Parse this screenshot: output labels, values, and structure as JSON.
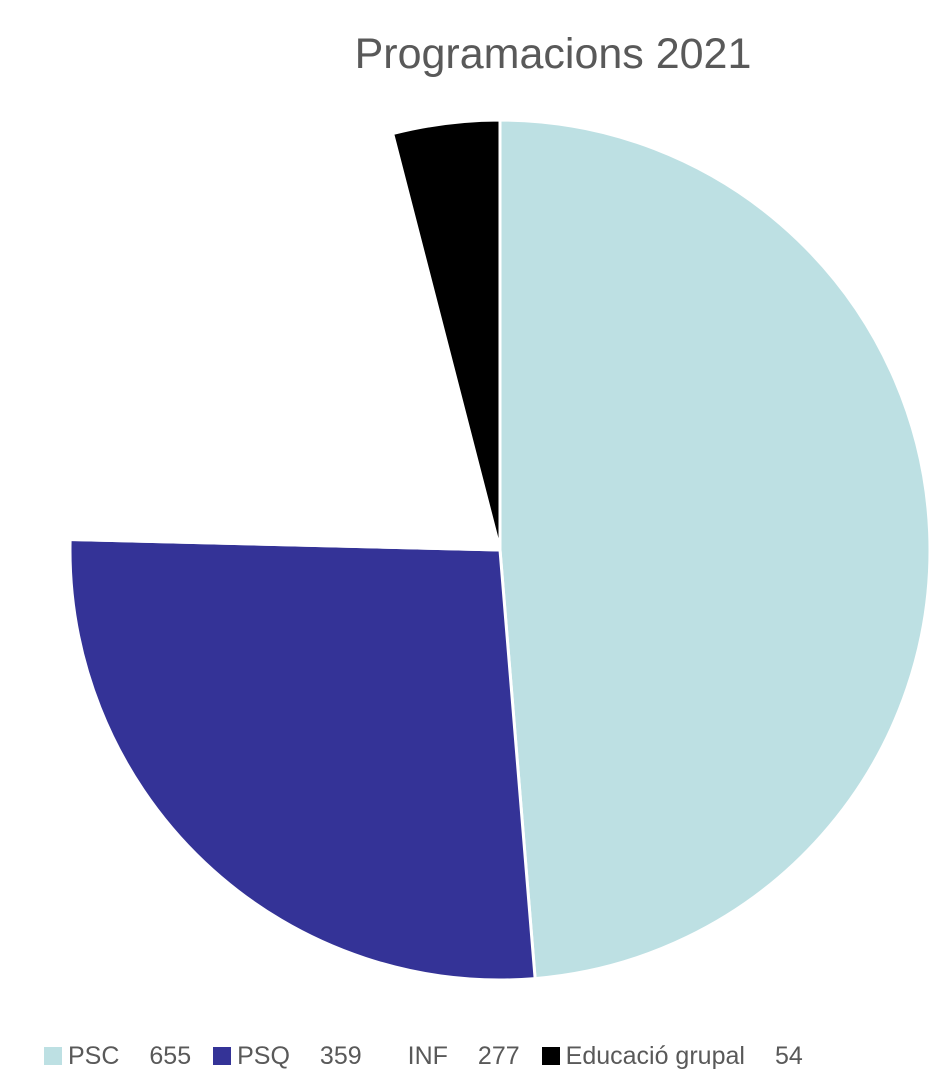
{
  "chart_data": {
    "type": "pie",
    "title": "Programacions 2021",
    "categories": [
      "PSC",
      "PSQ",
      "INF",
      "Educació grupal"
    ],
    "values": [
      655,
      359,
      277,
      54
    ],
    "colors": [
      "#bde0e3",
      "#343397",
      "#ffffff",
      "#000000"
    ],
    "legend_position": "bottom",
    "legend_labels": [
      "PSC",
      "PSQ",
      "INF",
      "Educació grupal"
    ],
    "legend_values": [
      "655",
      "359",
      "277",
      "54"
    ]
  }
}
